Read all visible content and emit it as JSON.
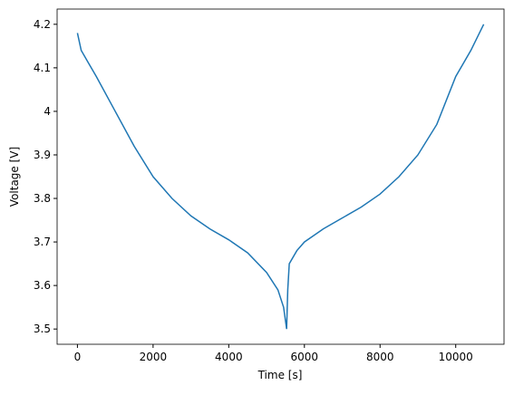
{
  "chart_data": {
    "type": "line",
    "xlabel": "Time [s]",
    "ylabel": "Voltage [V]",
    "series": [
      {
        "name": "voltage",
        "color": "#1f77b4",
        "x": [
          0,
          100,
          300,
          500,
          1000,
          1500,
          2000,
          2500,
          3000,
          3500,
          4000,
          4500,
          5000,
          5300,
          5450,
          5530,
          5560,
          5600,
          5800,
          6000,
          6500,
          7000,
          7500,
          8000,
          8500,
          9000,
          9500,
          10000,
          10400,
          10740
        ],
        "values": [
          4.18,
          4.14,
          4.11,
          4.08,
          4.0,
          3.92,
          3.85,
          3.8,
          3.76,
          3.73,
          3.705,
          3.675,
          3.63,
          3.59,
          3.55,
          3.5,
          3.59,
          3.65,
          3.68,
          3.7,
          3.73,
          3.755,
          3.78,
          3.81,
          3.85,
          3.9,
          3.97,
          4.08,
          4.14,
          4.2
        ]
      }
    ],
    "xlim": [
      -537,
      11277
    ],
    "ylim": [
      3.465,
      4.235
    ],
    "xticks": [
      0,
      2000,
      4000,
      6000,
      8000,
      10000
    ],
    "yticks": [
      3.5,
      3.6,
      3.7,
      3.8,
      3.9,
      4.0,
      4.1,
      4.2
    ]
  }
}
